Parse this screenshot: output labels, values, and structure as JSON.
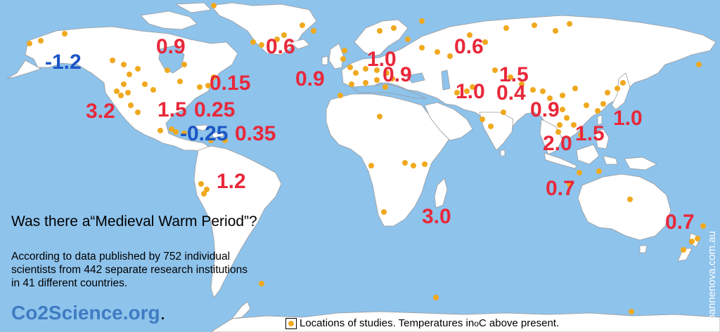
{
  "title": "Was there a“Medieval Warm Period”?",
  "description": [
    "According to data published by 752 individual",
    "scientists from 442 separate research institutions",
    "in 41 different countries."
  ],
  "brand": {
    "name": "Co2Science.org",
    "suffix": "."
  },
  "legend": {
    "text_before": "Locations of studies. Temperatures in ",
    "degree": "o",
    "text_after": "C above present."
  },
  "credit": "joannenova.com.au",
  "colors": {
    "ocean": "#8ec3ec",
    "land": "#ffffff",
    "positive": "#e8283a",
    "negative": "#1b56c6",
    "study_dot": "#f0a91e",
    "brand": "#3f7cc2"
  },
  "labels": [
    {
      "text": "-1.2",
      "sign": "neg"
    },
    {
      "text": "0.9",
      "sign": "pos"
    },
    {
      "text": "0.6",
      "sign": "pos"
    },
    {
      "text": "0.9",
      "sign": "pos"
    },
    {
      "text": "1.0",
      "sign": "pos"
    },
    {
      "text": "0.9",
      "sign": "pos"
    },
    {
      "text": "0.6",
      "sign": "pos"
    },
    {
      "text": "0.15",
      "sign": "pos"
    },
    {
      "text": "3.2",
      "sign": "pos"
    },
    {
      "text": "1.5",
      "sign": "pos"
    },
    {
      "text": "0.25",
      "sign": "pos"
    },
    {
      "text": "-0.25",
      "sign": "neg"
    },
    {
      "text": "0.35",
      "sign": "pos"
    },
    {
      "text": "1.2",
      "sign": "pos"
    },
    {
      "text": "1.5",
      "sign": "pos"
    },
    {
      "text": "1.0",
      "sign": "pos"
    },
    {
      "text": "0.4",
      "sign": "pos"
    },
    {
      "text": "0.9",
      "sign": "pos"
    },
    {
      "text": "1.0",
      "sign": "pos"
    },
    {
      "text": "2.0",
      "sign": "pos"
    },
    {
      "text": "1.5",
      "sign": "pos"
    },
    {
      "text": "0.7",
      "sign": "pos"
    },
    {
      "text": "3.0",
      "sign": "pos"
    },
    {
      "text": "0.7",
      "sign": "pos"
    }
  ]
}
